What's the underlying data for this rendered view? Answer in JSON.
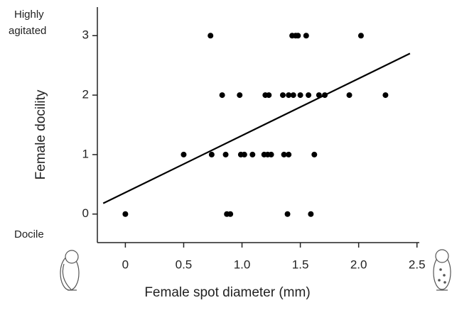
{
  "chart_data": {
    "type": "scatter",
    "xlabel": "Female spot diameter (mm)",
    "ylabel": "Female docility",
    "annotations": {
      "high": [
        "Highly",
        "agitated"
      ],
      "low": "Docile"
    },
    "xlim": [
      -0.24,
      2.52
    ],
    "ylim": [
      -0.48,
      3.48
    ],
    "xticks": [
      0,
      0.5,
      {
        "value": 1,
        "label": "1.0"
      },
      1.5,
      {
        "value": 2,
        "label": "2.0"
      },
      2.5
    ],
    "yticks": [
      0,
      1,
      2,
      3
    ],
    "series": [
      {
        "color": "#000000",
        "x": [
          0.73,
          1.43,
          1.46,
          1.48,
          1.55,
          2.02,
          0.83,
          0.98,
          1.2,
          1.23,
          1.35,
          1.4,
          1.44,
          1.5,
          1.57,
          1.66,
          1.71,
          1.92,
          2.23,
          0.5,
          0.74,
          0.86,
          0.99,
          1.02,
          1.09,
          1.19,
          1.22,
          1.25,
          1.36,
          1.4,
          1.62,
          0,
          0.87,
          0.9,
          1.39,
          1.59
        ],
        "values": [
          3,
          3,
          3,
          3,
          3,
          3,
          2,
          2,
          2,
          2,
          2,
          2,
          2,
          2,
          2,
          2,
          2,
          2,
          2,
          1,
          1,
          1,
          1,
          1,
          1,
          1,
          1,
          1,
          1,
          1,
          1,
          0,
          0,
          0,
          0,
          0
        ]
      }
    ],
    "trend": {
      "color": "#000000",
      "x": [
        -0.19,
        2.44
      ],
      "values": [
        0.18,
        2.7
      ]
    }
  }
}
